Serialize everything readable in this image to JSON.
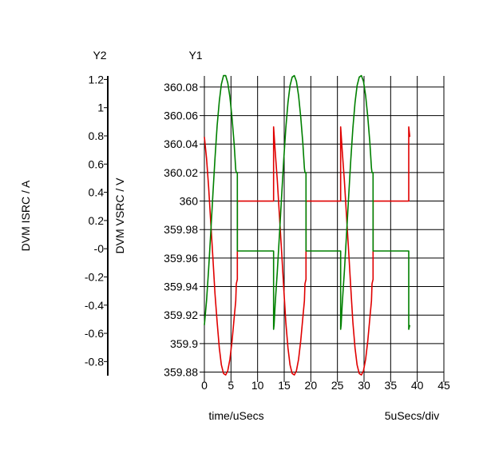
{
  "chart_data": {
    "type": "line",
    "x_axis": {
      "label": "time/uSecs",
      "scale_note": "5uSecs/div",
      "ticks": [
        0,
        5,
        10,
        15,
        20,
        25,
        30,
        35,
        40,
        45
      ],
      "range": [
        0,
        45
      ]
    },
    "y1_axis": {
      "header": "Y1",
      "label": "DVM VSRC / V",
      "ticks": [
        "360.08",
        "360.06",
        "360.04",
        "360.02",
        "360",
        "359.98",
        "359.96",
        "359.94",
        "359.92",
        "359.9",
        "359.88"
      ],
      "range": [
        359.8775,
        360.0878
      ]
    },
    "y2_axis": {
      "header": "Y2",
      "label": "DVM ISRC / A",
      "ticks": [
        "1.2",
        "1",
        "0.8",
        "0.6",
        "0.4",
        "0.2",
        "-0",
        "-0.2",
        "-0.4",
        "-0.6",
        "-0.8"
      ],
      "tick_values": [
        1.2,
        1,
        0.8,
        0.6,
        0.4,
        0.2,
        0,
        -0.2,
        -0.4,
        -0.6,
        -0.8
      ],
      "range": [
        -0.9,
        1.225
      ]
    },
    "grid": true,
    "series": [
      {
        "axis": "y1",
        "color": "#e00000",
        "points": [
          [
            0,
            360.045
          ],
          [
            0.4,
            360.03
          ],
          [
            0.8,
            360.01
          ],
          [
            1.2,
            359.985
          ],
          [
            1.6,
            359.96
          ],
          [
            2.0,
            359.935
          ],
          [
            2.4,
            359.915
          ],
          [
            2.8,
            359.897
          ],
          [
            3.2,
            359.885
          ],
          [
            3.6,
            359.879
          ],
          [
            4.0,
            359.878
          ],
          [
            4.4,
            359.881
          ],
          [
            4.8,
            359.889
          ],
          [
            5.2,
            359.902
          ],
          [
            5.6,
            359.918
          ],
          [
            5.9,
            359.93
          ],
          [
            6.0,
            359.942
          ],
          [
            6.2,
            359.945
          ],
          [
            6.2,
            360
          ],
          [
            13.0,
            360
          ],
          [
            13.0,
            360.052
          ],
          [
            13.1,
            360.047
          ],
          [
            13.3,
            360.035
          ],
          [
            13.7,
            360.015
          ],
          [
            14.1,
            359.99
          ],
          [
            14.5,
            359.965
          ],
          [
            14.9,
            359.94
          ],
          [
            15.3,
            359.915
          ],
          [
            15.7,
            359.897
          ],
          [
            16.1,
            359.885
          ],
          [
            16.5,
            359.879
          ],
          [
            16.9,
            359.878
          ],
          [
            17.3,
            359.881
          ],
          [
            17.7,
            359.889
          ],
          [
            18.1,
            359.902
          ],
          [
            18.5,
            359.918
          ],
          [
            18.8,
            359.93
          ],
          [
            18.9,
            359.942
          ],
          [
            19.1,
            359.945
          ],
          [
            19.1,
            360
          ],
          [
            25.6,
            360
          ],
          [
            25.6,
            360.052
          ],
          [
            25.7,
            360.047
          ],
          [
            25.9,
            360.035
          ],
          [
            26.3,
            360.015
          ],
          [
            26.7,
            359.99
          ],
          [
            27.1,
            359.965
          ],
          [
            27.5,
            359.94
          ],
          [
            27.9,
            359.915
          ],
          [
            28.3,
            359.897
          ],
          [
            28.7,
            359.885
          ],
          [
            29.1,
            359.879
          ],
          [
            29.5,
            359.878
          ],
          [
            29.9,
            359.881
          ],
          [
            30.3,
            359.889
          ],
          [
            30.7,
            359.902
          ],
          [
            31.1,
            359.918
          ],
          [
            31.4,
            359.93
          ],
          [
            31.5,
            359.942
          ],
          [
            31.7,
            359.945
          ],
          [
            31.7,
            360
          ],
          [
            38.4,
            360
          ],
          [
            38.4,
            360.052
          ],
          [
            38.6,
            360.045
          ]
        ]
      },
      {
        "axis": "y1",
        "color": "#008000",
        "points": [
          [
            0,
            359.913
          ],
          [
            0.4,
            359.93
          ],
          [
            0.8,
            359.952
          ],
          [
            1.2,
            359.978
          ],
          [
            1.6,
            360.005
          ],
          [
            2.0,
            360.03
          ],
          [
            2.4,
            360.053
          ],
          [
            2.8,
            360.07
          ],
          [
            3.2,
            360.082
          ],
          [
            3.6,
            360.088
          ],
          [
            4.0,
            360.088
          ],
          [
            4.4,
            360.083
          ],
          [
            4.8,
            360.073
          ],
          [
            5.2,
            360.058
          ],
          [
            5.6,
            360.04
          ],
          [
            5.9,
            360.022
          ],
          [
            6.0,
            360.02
          ],
          [
            6.2,
            360.02
          ],
          [
            6.2,
            359.965
          ],
          [
            13.0,
            359.965
          ],
          [
            13.0,
            359.91
          ],
          [
            13.1,
            359.913
          ],
          [
            13.3,
            359.928
          ],
          [
            13.7,
            359.95
          ],
          [
            14.1,
            359.976
          ],
          [
            14.5,
            360.003
          ],
          [
            14.9,
            360.028
          ],
          [
            15.3,
            360.051
          ],
          [
            15.7,
            360.069
          ],
          [
            16.1,
            360.081
          ],
          [
            16.5,
            360.087
          ],
          [
            16.9,
            360.088
          ],
          [
            17.3,
            360.084
          ],
          [
            17.7,
            360.074
          ],
          [
            18.1,
            360.059
          ],
          [
            18.5,
            360.041
          ],
          [
            18.8,
            360.023
          ],
          [
            18.9,
            360.02
          ],
          [
            19.1,
            360.02
          ],
          [
            19.1,
            359.965
          ],
          [
            25.6,
            359.965
          ],
          [
            25.6,
            359.91
          ],
          [
            25.7,
            359.913
          ],
          [
            25.9,
            359.928
          ],
          [
            26.3,
            359.95
          ],
          [
            26.7,
            359.976
          ],
          [
            27.1,
            360.003
          ],
          [
            27.5,
            360.028
          ],
          [
            27.9,
            360.051
          ],
          [
            28.3,
            360.069
          ],
          [
            28.7,
            360.081
          ],
          [
            29.1,
            360.087
          ],
          [
            29.5,
            360.088
          ],
          [
            29.9,
            360.084
          ],
          [
            30.3,
            360.074
          ],
          [
            30.7,
            360.059
          ],
          [
            31.1,
            360.041
          ],
          [
            31.4,
            360.023
          ],
          [
            31.5,
            360.02
          ],
          [
            31.7,
            360.02
          ],
          [
            31.7,
            359.965
          ],
          [
            38.4,
            359.965
          ],
          [
            38.4,
            359.91
          ],
          [
            38.6,
            359.913
          ]
        ]
      }
    ]
  }
}
